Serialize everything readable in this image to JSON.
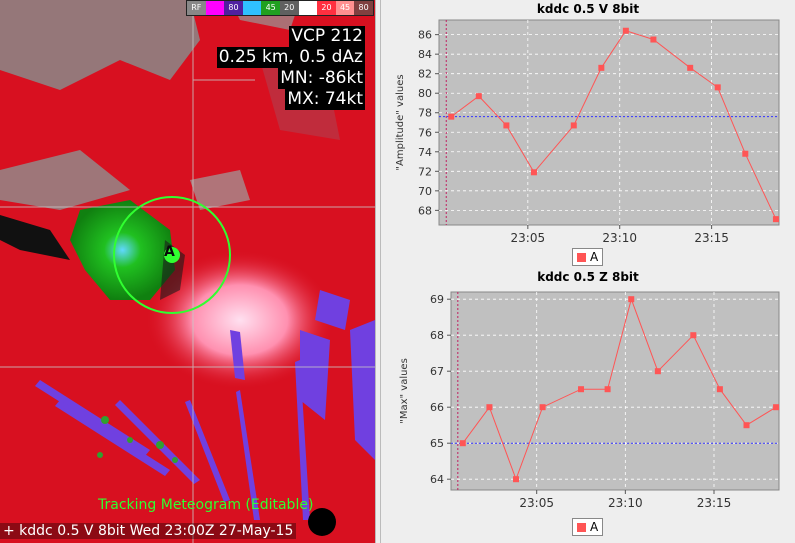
{
  "radar": {
    "colorbar": [
      "RF",
      "",
      "80",
      "",
      "45",
      "20",
      "",
      "20",
      "45",
      "80"
    ],
    "info_lines": [
      "VCP 212",
      "0.25 km, 0.5 dAz",
      "MN: -86kt",
      "MX: 74kt"
    ],
    "point_label": "A",
    "overlay_title": "Tracking Meteogram (Editable)",
    "status": "+ kddc 0.5  V 8bit  Wed 23:00Z 27-May-15"
  },
  "chart_data": [
    {
      "type": "line",
      "title": "kddc 0.5  V 8bit",
      "ylabel": "\"Amplitude\" values",
      "xlabel": "",
      "x": [
        "23:00:50",
        "23:02:20",
        "23:03:50",
        "23:05:20",
        "23:07:30",
        "23:09:00",
        "23:10:20",
        "23:11:50",
        "23:13:50",
        "23:15:20",
        "23:16:50",
        "23:18:30"
      ],
      "series": [
        {
          "name": "A",
          "values": [
            77.6,
            79.7,
            76.7,
            71.9,
            76.7,
            82.6,
            86.4,
            85.5,
            82.6,
            80.6,
            73.8,
            67.1
          ]
        }
      ],
      "reference_line": 77.6,
      "yticks": [
        68,
        70,
        72,
        74,
        76,
        78,
        80,
        82,
        84,
        86
      ],
      "xticks": [
        "23:05",
        "23:10",
        "23:15"
      ],
      "ylim": [
        66.5,
        87.5
      ],
      "legend": "bottom",
      "grid": true
    },
    {
      "type": "line",
      "title": "kddc 0.5  Z 8bit",
      "ylabel": "\"Max\" values",
      "xlabel": "",
      "x": [
        "23:00:50",
        "23:02:20",
        "23:03:50",
        "23:05:20",
        "23:07:30",
        "23:09:00",
        "23:10:20",
        "23:11:50",
        "23:13:50",
        "23:15:20",
        "23:16:50",
        "23:18:30"
      ],
      "series": [
        {
          "name": "A",
          "values": [
            65,
            66,
            64,
            66,
            66.5,
            66.5,
            69,
            67,
            68,
            66.5,
            65.5,
            66
          ]
        }
      ],
      "reference_line": 65,
      "yticks": [
        64,
        65,
        66,
        67,
        68,
        69
      ],
      "xticks": [
        "23:05",
        "23:10",
        "23:15"
      ],
      "ylim": [
        63.7,
        69.2
      ],
      "legend": "bottom",
      "grid": true
    }
  ],
  "colors": {
    "series": "#ff5555",
    "reference": "#3333ff",
    "plot_bg": "#c0c0c0",
    "grid": "#ffffff"
  }
}
